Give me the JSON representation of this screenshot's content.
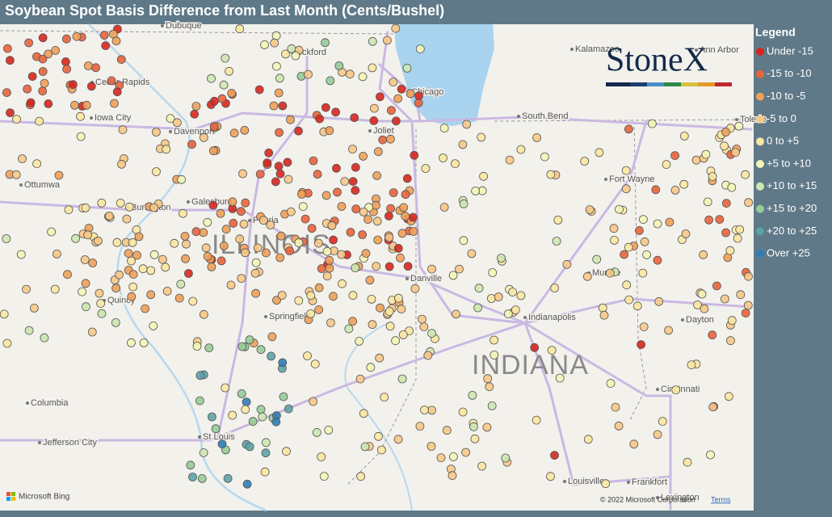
{
  "title": "Soybean Spot Basis Difference from Last Month (Cents/Bushel)",
  "legend": {
    "title": "Legend",
    "items": [
      {
        "label": "Under -15",
        "color": "#d7261e"
      },
      {
        "label": "-15 to -10",
        "color": "#e8643c"
      },
      {
        "label": "-10 to -5",
        "color": "#f0a059"
      },
      {
        "label": "-5 to 0",
        "color": "#f7c887"
      },
      {
        "label": "0 to +5",
        "color": "#fbe7a1"
      },
      {
        "label": "+5 to +10",
        "color": "#f3f5b6"
      },
      {
        "label": "+10 to +15",
        "color": "#cde7b0"
      },
      {
        "label": "+15 to +20",
        "color": "#97cb98"
      },
      {
        "label": "+20 to +25",
        "color": "#5ea3a8"
      },
      {
        "label": "Over +25",
        "color": "#2f7db6"
      }
    ]
  },
  "map": {
    "logo": "StoneX",
    "provider": "Microsoft Bing",
    "attribution": "© 2022 Microsoft Corporation",
    "terms": "Terms",
    "states": [
      "ILLINOIS",
      "INDIANA"
    ],
    "cities": [
      "Dubuque",
      "Rockford",
      "Kalamazoo",
      "Ann Arbor",
      "Cedar Rapids",
      "Iowa City",
      "Davenport",
      "Chicago",
      "Joliet",
      "South Bend",
      "Toledo",
      "Ottumwa",
      "Burlington",
      "Galesburg",
      "Peoria",
      "Fort Wayne",
      "Muncie",
      "Quincy",
      "Springfield",
      "Danville",
      "Indianapolis",
      "Dayton",
      "Columbia",
      "Jefferson City",
      "St Louis",
      "Cincinnati",
      "Louisville",
      "Frankfort",
      "Lexington"
    ]
  }
}
